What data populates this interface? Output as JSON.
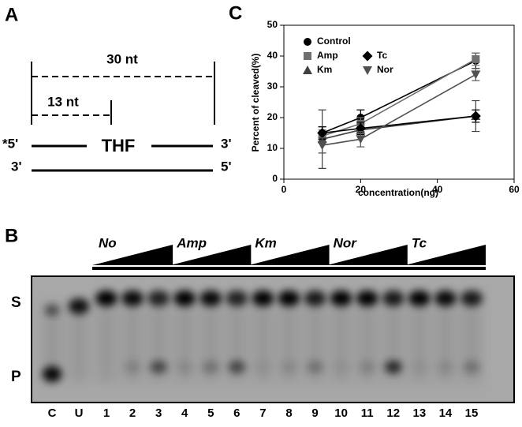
{
  "panel_a": {
    "label": "A",
    "long_span": "30 nt",
    "short_span": "13 nt",
    "top_left": "*5'",
    "lesion": "THF",
    "top_right": "3'",
    "bottom_left": "3'",
    "bottom_right": "5'"
  },
  "panel_b": {
    "label": "B",
    "treatments": [
      "No",
      "Amp",
      "Km",
      "Nor",
      "Tc"
    ],
    "substrate": "S",
    "product": "P",
    "lanes": [
      "C",
      "U",
      "1",
      "2",
      "3",
      "4",
      "5",
      "6",
      "7",
      "8",
      "9",
      "10",
      "11",
      "12",
      "13",
      "14",
      "15"
    ]
  },
  "chart_data": {
    "type": "line",
    "panel_label": "C",
    "x_label": "concentration(ng)",
    "y_label": "Percent of cleaved(%)",
    "xlim": [
      0,
      60
    ],
    "xticks": [
      0,
      20,
      40,
      60
    ],
    "ylim": [
      0,
      50
    ],
    "yticks": [
      0,
      10,
      20,
      30,
      40,
      50
    ],
    "x": [
      10,
      20,
      50
    ],
    "series": [
      {
        "name": "Control",
        "color": "#000000",
        "marker": "circle",
        "values": [
          15,
          20,
          38.5
        ],
        "errors": [
          2,
          2.5,
          2.5
        ]
      },
      {
        "name": "Amp",
        "color": "#707070",
        "marker": "square",
        "values": [
          14,
          18,
          39
        ],
        "errors": [
          2,
          2,
          2
        ]
      },
      {
        "name": "Km",
        "color": "#404040",
        "marker": "triangle-up",
        "values": [
          13,
          16,
          20.5
        ],
        "errors": [
          9.5,
          2,
          5
        ]
      },
      {
        "name": "Tc",
        "color": "#000000",
        "marker": "diamond",
        "values": [
          15,
          16.5,
          20.5
        ],
        "errors": [
          2,
          2,
          2
        ]
      },
      {
        "name": "Nor",
        "color": "#505050",
        "marker": "triangle-down",
        "values": [
          11,
          13,
          34
        ],
        "errors": [
          2.5,
          2.5,
          2
        ]
      }
    ]
  }
}
